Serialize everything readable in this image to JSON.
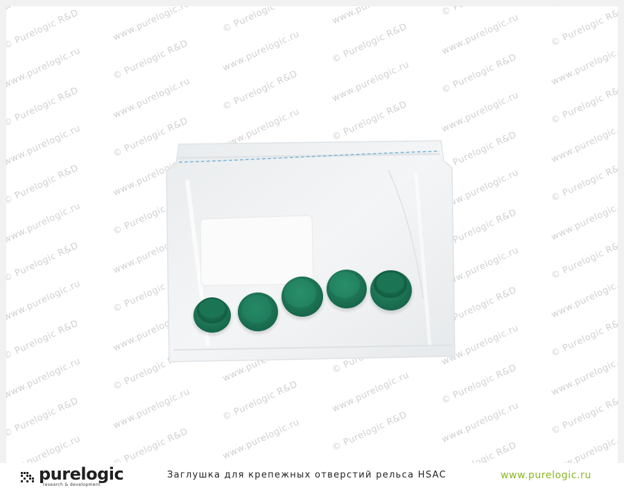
{
  "watermark": {
    "copyright_text": "© Purelogic R&D",
    "url_text": "www.purelogic.ru"
  },
  "photo": {
    "subject": "zip bag with five green plastic caps",
    "cap_count": 5,
    "colors": {
      "cap": "#1e7a5a",
      "bag_seal": "#7fb7d6",
      "background": "#ffffff"
    }
  },
  "footer": {
    "logo": {
      "wordmark": "purelogic",
      "tagline": "research & development",
      "icon": "purelogic-logo-icon"
    },
    "caption": "Заглушка для крепежных отверстий рельса HSAC",
    "site_url": "www.purelogic.ru",
    "colors": {
      "site_url": "#8ab71f",
      "caption": "#222222"
    }
  }
}
